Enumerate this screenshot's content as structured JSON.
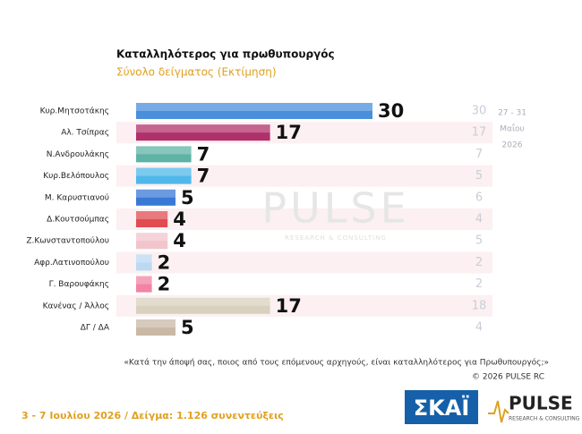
{
  "chart_data": {
    "type": "bar",
    "orientation": "horizontal",
    "title": "Καταλληλότερος για πρωθυπουργός",
    "subtitle": "Σύνολο δείγματος (Εκτίμηση)",
    "categories": [
      "Κυρ.Μητσοτάκης",
      "Αλ. Τσίπρας",
      "Ν.Ανδρουλάκης",
      "Κυρ.Βελόπουλος",
      "Μ. Καρυστιανού",
      "Δ.Κουτσούμπας",
      "Ζ.Κωνσταντοπούλου",
      "Αφρ.Λατινοπούλου",
      "Γ. Βαρουφάκης",
      "Κανένας / Άλλος",
      "ΔΓ / ΔΑ"
    ],
    "values": [
      30,
      17,
      7,
      7,
      5,
      4,
      4,
      2,
      2,
      17,
      5
    ],
    "colors": [
      "#4a8fdc",
      "#b0306a",
      "#5fb3a6",
      "#4fb8ea",
      "#3a78d6",
      "#e04c52",
      "#f2c4cc",
      "#bcd9f2",
      "#f283a4",
      "#d9d1bf",
      "#c9b8a6"
    ],
    "previous": {
      "label": [
        "27 - 31",
        "Μαΐου",
        "2026"
      ],
      "values": [
        30,
        17,
        7,
        5,
        6,
        4,
        5,
        2,
        2,
        18,
        4
      ]
    }
  },
  "watermark": {
    "title": "PULSE",
    "subtitle": "RESEARCH & CONSULTING"
  },
  "footer": {
    "question": "«Κατά την άποψή σας, ποιος από τους επόμενους αρχηγούς, είναι καταλληλότερος για Πρωθυπουργός;»",
    "copyright": "©  2026  PULSE RC",
    "fieldwork": "3 - 7  Ιουλίου 2026  /  Δείγμα:  1.126 συνεντεύξεις",
    "logo_skai": "ΣΚΑΪ",
    "logo_pulse": "PULSE",
    "logo_pulse_sub": "RESEARCH & CONSULTING"
  }
}
